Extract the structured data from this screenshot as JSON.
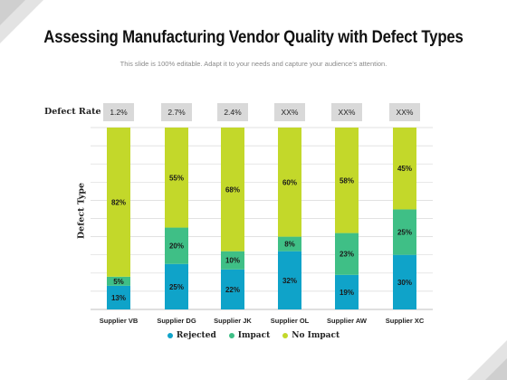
{
  "title": "Assessing Manufacturing Vendor Quality with Defect Types",
  "subtitle": "This slide is 100% editable. Adapt it to your needs and capture your audience’s attention.",
  "defect_rate_label": "Defect Rate",
  "defect_rates": [
    "1.2%",
    "2.7%",
    "2.4%",
    "XX%",
    "XX%",
    "XX%"
  ],
  "colors": {
    "rejected": "#0fa3c9",
    "impact": "#3fbf86",
    "no_impact": "#c3d82a",
    "grid": "#d9d9d9",
    "axis": "#bfbfbf"
  },
  "chart_data": {
    "type": "bar",
    "stacked": true,
    "categories": [
      "Supplier VB",
      "Supplier DG",
      "Supplier JK",
      "Supplier OL",
      "Supplier AW",
      "Supplier XC"
    ],
    "series": [
      {
        "name": "Rejected",
        "values": [
          13,
          25,
          22,
          32,
          19,
          30
        ],
        "labels": [
          "13%",
          "25%",
          "22%",
          "32%",
          "19%",
          "30%"
        ]
      },
      {
        "name": "Impact",
        "values": [
          5,
          20,
          10,
          8,
          23,
          25
        ],
        "labels": [
          "5%",
          "20%",
          "10%",
          "8%",
          "23%",
          "25%"
        ]
      },
      {
        "name": "No Impact",
        "values": [
          82,
          55,
          68,
          60,
          58,
          45
        ],
        "labels": [
          "82%",
          "55%",
          "68%",
          "60%",
          "58%",
          "45%"
        ]
      }
    ],
    "ylabel": "Defect Type",
    "xlabel": "",
    "ylim": [
      0,
      100
    ],
    "grid": true,
    "legend_position": "bottom"
  }
}
